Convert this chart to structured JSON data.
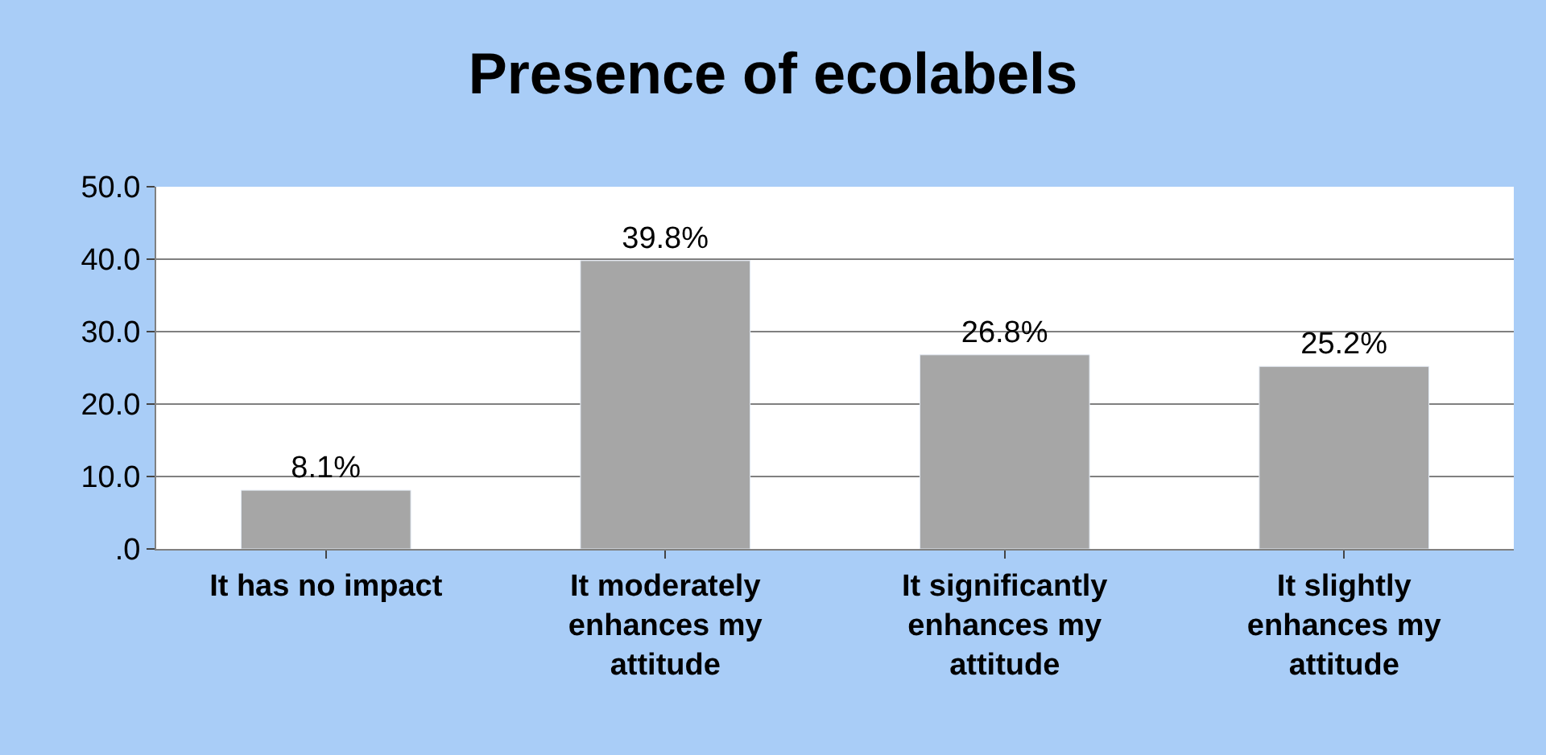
{
  "chart_data": {
    "type": "bar",
    "title": "Presence of ecolabels",
    "categories": [
      "It has no impact",
      "It moderately enhances my attitude",
      "It significantly enhances my attitude",
      "It slightly enhances my attitude"
    ],
    "values": [
      8.1,
      39.8,
      26.8,
      25.2
    ],
    "color": "#a6a6a6",
    "value_labels": [
      "8.1%",
      "39.8%",
      "26.8%",
      "25.2%"
    ],
    "ylim": [
      0,
      50
    ],
    "yticks": [
      {
        "value": 0,
        "label": ".0"
      },
      {
        "value": 10,
        "label": "10.0"
      },
      {
        "value": 20,
        "label": "20.0"
      },
      {
        "value": 30,
        "label": "30.0"
      },
      {
        "value": 40,
        "label": "40.0"
      },
      {
        "value": 50,
        "label": "50.0"
      }
    ],
    "grid": "y",
    "legend": false
  }
}
